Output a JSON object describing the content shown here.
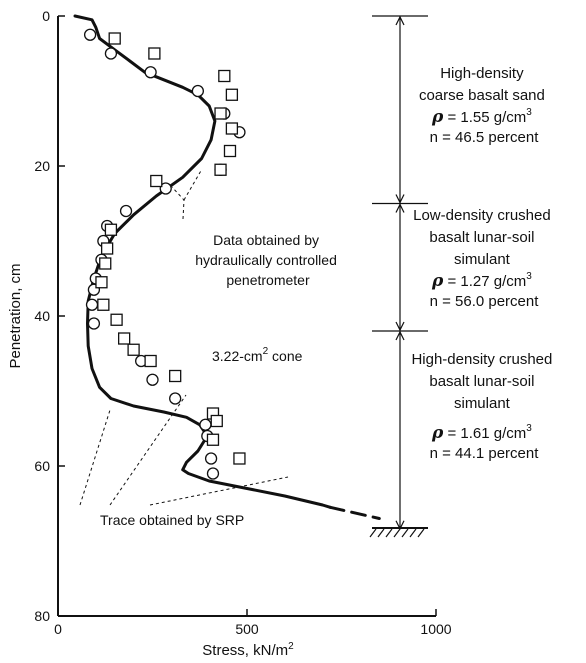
{
  "chart_data": {
    "type": "scatter",
    "title": "",
    "xlabel": "Stress, kN/m",
    "xlabel_sup": "2",
    "ylabel": "Penetration, cm",
    "xlim": [
      0,
      1000
    ],
    "ylim": [
      0,
      80
    ],
    "y_inverted": true,
    "grid": false,
    "x_ticks": [
      "0",
      "500",
      "1000"
    ],
    "y_ticks": [
      "0",
      "20",
      "40",
      "60",
      "80"
    ],
    "series": [
      {
        "kind": "line",
        "points": [
          [
            45,
            0
          ],
          [
            90,
            0.5
          ],
          [
            100,
            1.5
          ],
          [
            110,
            3
          ],
          [
            150,
            4.5
          ],
          [
            190,
            6
          ],
          [
            230,
            7.5
          ],
          [
            280,
            8.5
          ],
          [
            330,
            9.5
          ],
          [
            370,
            10.5
          ],
          [
            400,
            12
          ],
          [
            415,
            14
          ],
          [
            405,
            16.5
          ],
          [
            380,
            19
          ],
          [
            330,
            21.5
          ],
          [
            260,
            24
          ],
          [
            200,
            26.5
          ],
          [
            150,
            29
          ],
          [
            115,
            32
          ],
          [
            95,
            35
          ],
          [
            80,
            38
          ],
          [
            78,
            41
          ],
          [
            80,
            44
          ],
          [
            90,
            47
          ],
          [
            110,
            49.5
          ],
          [
            140,
            51
          ],
          [
            200,
            52
          ],
          [
            280,
            52.8
          ],
          [
            340,
            53.5
          ],
          [
            375,
            54.5
          ],
          [
            395,
            56
          ],
          [
            370,
            58
          ],
          [
            340,
            59.5
          ],
          [
            330,
            60.5
          ],
          [
            345,
            61
          ],
          [
            400,
            62
          ],
          [
            500,
            63
          ],
          [
            600,
            64
          ],
          [
            700,
            65.2
          ],
          [
            720,
            65.5
          ]
        ]
      },
      {
        "kind": "line",
        "dashed": true,
        "points": [
          [
            720,
            65.5
          ],
          [
            850,
            67
          ]
        ]
      },
      {
        "marker": "circle",
        "points": [
          [
            85,
            2.5
          ],
          [
            140,
            5
          ],
          [
            245,
            7.5
          ],
          [
            370,
            10
          ],
          [
            440,
            13
          ],
          [
            480,
            15.5
          ],
          [
            430,
            20.5
          ],
          [
            285,
            23
          ],
          [
            180,
            26
          ],
          [
            130,
            28
          ],
          [
            120,
            30
          ],
          [
            115,
            32.5
          ],
          [
            100,
            35
          ],
          [
            95,
            36.5
          ],
          [
            90,
            38.5
          ],
          [
            95,
            41
          ],
          [
            220,
            46
          ],
          [
            250,
            48.5
          ],
          [
            310,
            51
          ],
          [
            390,
            54.5
          ],
          [
            395,
            56
          ],
          [
            405,
            59
          ],
          [
            410,
            61
          ]
        ]
      },
      {
        "marker": "square",
        "points": [
          [
            150,
            3
          ],
          [
            255,
            5
          ],
          [
            440,
            8
          ],
          [
            460,
            10.5
          ],
          [
            430,
            13
          ],
          [
            460,
            15
          ],
          [
            455,
            18
          ],
          [
            430,
            20.5
          ],
          [
            260,
            22
          ],
          [
            140,
            28.5
          ],
          [
            130,
            31
          ],
          [
            125,
            33
          ],
          [
            115,
            35.5
          ],
          [
            120,
            38.5
          ],
          [
            155,
            40.5
          ],
          [
            175,
            43
          ],
          [
            200,
            44.5
          ],
          [
            245,
            46
          ],
          [
            310,
            48
          ],
          [
            410,
            53
          ],
          [
            420,
            54
          ],
          [
            410,
            56.5
          ],
          [
            480,
            59
          ]
        ]
      }
    ],
    "layers": [
      {
        "top": 0,
        "bottom": 25,
        "lines": [
          "High-density",
          "coarse basalt sand"
        ],
        "rho_symbol": "ρ",
        "rho": " = 1.55 g/cm",
        "rho_sup": "3",
        "porosity": "n = 46.5 percent"
      },
      {
        "top": 25,
        "bottom": 42,
        "lines": [
          "Low-density crushed",
          "basalt lunar-soil",
          "simulant"
        ],
        "rho_symbol": "ρ",
        "rho": " = 1.27 g/cm",
        "rho_sup": "3",
        "porosity": "n = 56.0 percent"
      },
      {
        "top": 42,
        "bottom": 68.5,
        "lines": [
          "High-density crushed",
          "basalt lunar-soil",
          "simulant"
        ],
        "rho_symbol": "ρ",
        "rho": " = 1.61 g/cm",
        "rho_sup": "3",
        "porosity": "n = 44.1 percent"
      }
    ],
    "annotations": {
      "penetrometer": [
        "Data obtained by",
        "hydraulically controlled",
        "penetrometer"
      ],
      "cone": "3.22-cm",
      "cone_sup": "2",
      "cone_suffix": " cone",
      "srp": "Trace obtained by SRP"
    }
  }
}
